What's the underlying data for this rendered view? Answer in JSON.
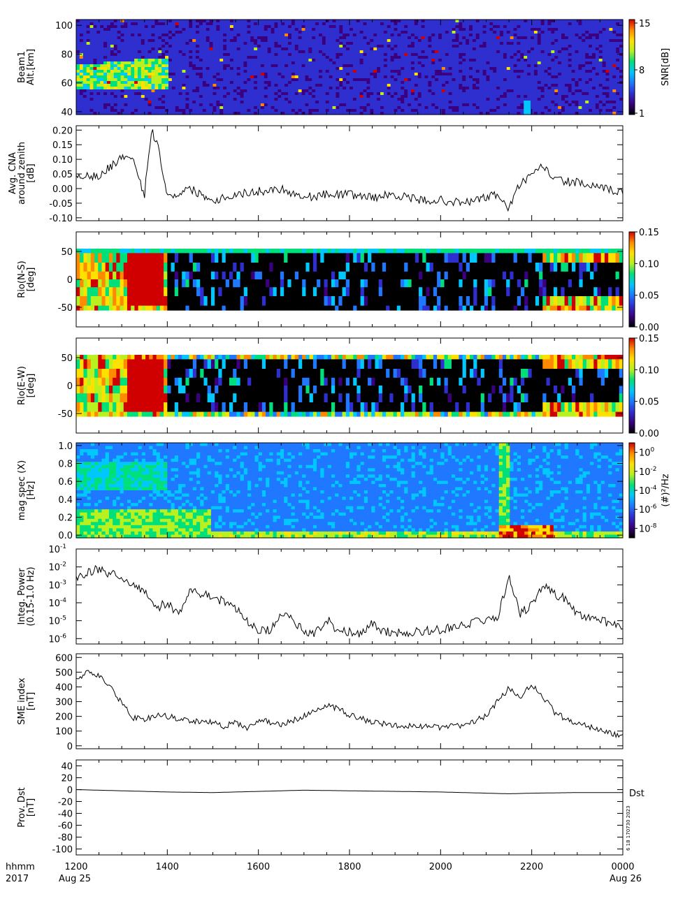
{
  "colors": {
    "colormap": [
      "#000000",
      "#3a0080",
      "#2f2fd0",
      "#1f78ff",
      "#00c8ff",
      "#00e07a",
      "#b8f020",
      "#ffe100",
      "#ff8a00",
      "#d00000"
    ],
    "background": "#ffffff",
    "line": "#000000"
  },
  "chart_data": [
    {
      "type": "heatmap",
      "id": "beam1",
      "ylabel": [
        "Beam1",
        "Alt.[km]"
      ],
      "yticks": [
        40,
        60,
        80,
        100
      ],
      "ylim": [
        38,
        104
      ],
      "colorbar": {
        "label": "SNR[dB]",
        "ticks": [
          "15",
          "8",
          "1"
        ],
        "range": [
          1,
          15
        ]
      }
    },
    {
      "type": "line",
      "id": "cna",
      "ylabel": [
        "Avg. CNA",
        "around zenith",
        "[dB]"
      ],
      "yticks": [
        "0.20",
        "0.15",
        "0.10",
        "0.05",
        "0.00",
        "-0.05",
        "-0.10"
      ],
      "ylim": [
        -0.11,
        0.215
      ],
      "x": [
        12.0,
        12.5,
        13.0,
        13.25,
        13.5,
        13.65,
        13.8,
        14.0,
        14.5,
        15.0,
        15.5,
        16.0,
        16.5,
        17.0,
        17.5,
        18.0,
        18.5,
        19.0,
        19.5,
        20.0,
        20.5,
        21.0,
        21.25,
        21.5,
        21.75,
        22.0,
        22.25,
        22.5,
        23.0,
        23.5,
        24.0
      ],
      "values": [
        0.05,
        0.04,
        0.11,
        0.09,
        -0.02,
        0.2,
        0.15,
        -0.03,
        0.0,
        -0.04,
        -0.02,
        -0.01,
        0.0,
        -0.03,
        -0.02,
        -0.02,
        -0.03,
        -0.02,
        -0.04,
        -0.04,
        -0.05,
        -0.03,
        -0.02,
        -0.07,
        0.02,
        0.04,
        0.08,
        0.03,
        0.02,
        0.0,
        -0.01
      ]
    },
    {
      "type": "heatmap",
      "id": "rio_ns",
      "ylabel": [
        "Rio(N-S)",
        "[deg]"
      ],
      "yticks": [
        50,
        0,
        -50
      ],
      "ylim": [
        -85,
        85
      ],
      "colorbar": {
        "label": "",
        "ticks": [
          "0.15",
          "0.10",
          "0.05",
          "0.00"
        ],
        "range": [
          0,
          0.15
        ]
      }
    },
    {
      "type": "heatmap",
      "id": "rio_ew",
      "ylabel": [
        "Rio(E-W)",
        "[deg]"
      ],
      "yticks": [
        50,
        0,
        -50
      ],
      "ylim": [
        -85,
        85
      ],
      "colorbar": {
        "label": "",
        "ticks": [
          "0.15",
          "0.10",
          "0.05",
          "0.00"
        ],
        "range": [
          0,
          0.15
        ]
      }
    },
    {
      "type": "heatmap",
      "id": "magspec",
      "ylabel": [
        "mag spec (X)",
        "[Hz]"
      ],
      "yticks": [
        "1.0",
        "0.8",
        "0.6",
        "0.4",
        "0.2",
        "0.0"
      ],
      "ylim": [
        -0.03,
        1.03
      ],
      "colorbar": {
        "label": "(#)²/Hz",
        "ticks": [
          0,
          -2,
          -4,
          -6,
          -8
        ],
        "range": [
          -9,
          1
        ]
      }
    },
    {
      "type": "line",
      "id": "integ",
      "log": true,
      "ylabel": [
        "Integ. Power",
        "(0.15-1.0 Hz)"
      ],
      "yticks": [
        -1,
        -2,
        -3,
        -4,
        -5,
        -6
      ],
      "ylim": [
        -6.3,
        -1.0
      ],
      "x": [
        12.0,
        12.25,
        12.5,
        12.75,
        13.0,
        13.25,
        13.5,
        13.75,
        14.0,
        14.25,
        14.5,
        14.75,
        15.0,
        15.25,
        15.5,
        15.75,
        16.0,
        16.25,
        16.5,
        16.75,
        17.0,
        17.25,
        17.5,
        17.75,
        18.0,
        18.25,
        18.5,
        18.75,
        19.0,
        19.5,
        20.0,
        20.5,
        21.0,
        21.25,
        21.5,
        21.75,
        22.0,
        22.25,
        22.5,
        22.75,
        23.0,
        23.5,
        24.0
      ],
      "values": [
        -2.6,
        -2.3,
        -2.1,
        -2.4,
        -2.5,
        -3.0,
        -3.3,
        -4.3,
        -4.0,
        -4.7,
        -3.3,
        -3.5,
        -3.6,
        -4.0,
        -4.3,
        -5.0,
        -5.6,
        -5.5,
        -4.5,
        -5.0,
        -5.6,
        -5.7,
        -4.9,
        -5.6,
        -5.6,
        -5.7,
        -5.1,
        -5.6,
        -5.7,
        -5.6,
        -5.5,
        -5.2,
        -5.0,
        -4.8,
        -2.5,
        -4.6,
        -4.1,
        -3.0,
        -3.5,
        -3.8,
        -4.6,
        -5.0,
        -5.3
      ]
    },
    {
      "type": "line",
      "id": "sme",
      "ylabel": [
        "SME index",
        "[nT]"
      ],
      "yticks": [
        600,
        500,
        400,
        300,
        200,
        100,
        0
      ],
      "ylim": [
        -20,
        625
      ],
      "x": [
        12.0,
        12.25,
        12.5,
        12.75,
        13.0,
        13.25,
        13.5,
        13.75,
        14.0,
        14.5,
        15.0,
        15.25,
        15.5,
        15.75,
        16.0,
        16.5,
        17.0,
        17.25,
        17.5,
        17.75,
        18.0,
        18.5,
        19.0,
        19.5,
        20.0,
        20.5,
        21.0,
        21.25,
        21.5,
        21.75,
        22.0,
        22.25,
        22.5,
        22.75,
        23.0,
        23.5,
        24.0
      ],
      "values": [
        440,
        500,
        470,
        400,
        290,
        190,
        180,
        210,
        200,
        170,
        160,
        130,
        160,
        120,
        180,
        140,
        200,
        250,
        280,
        250,
        210,
        160,
        140,
        130,
        125,
        140,
        200,
        300,
        390,
        330,
        420,
        330,
        230,
        180,
        150,
        110,
        60
      ]
    },
    {
      "type": "line",
      "id": "dst",
      "ylabel": [
        "Prov. Dst",
        "[nT]"
      ],
      "yticks": [
        40,
        20,
        0,
        -20,
        -40,
        -60,
        -80,
        -100
      ],
      "ylim": [
        -110,
        50
      ],
      "x": [
        12,
        13,
        14,
        15,
        16,
        17,
        18,
        19,
        20,
        21,
        21.5,
        22,
        23,
        24
      ],
      "values": [
        0,
        -2,
        -4,
        -5,
        -3,
        -1,
        -2,
        -3,
        -4,
        -6,
        -7,
        -6,
        -5,
        -5
      ],
      "annotation": "Dst",
      "stamp": "6 18 170730 2023"
    }
  ],
  "xaxis": {
    "ticks": [
      "1200",
      "1400",
      "1600",
      "1800",
      "2000",
      "2200",
      "0000"
    ],
    "row_label_1": "hhmm",
    "row_label_2": "2017",
    "start_date": "Aug 25",
    "end_date": "Aug 26"
  }
}
